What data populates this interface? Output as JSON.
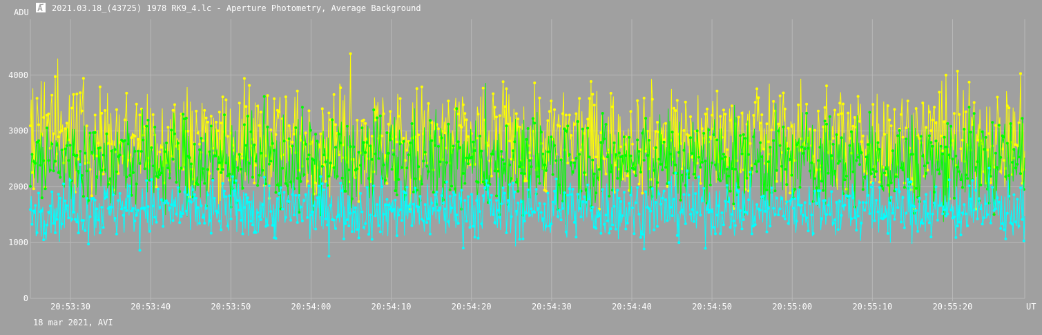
{
  "window": {
    "title": "2021.03.18_(43725) 1978 RK9_4.lc - Aperture Photometry, Average Background",
    "icon": "telescope-app-icon"
  },
  "footer": {
    "date_label": "18 mar 2021, AVI"
  },
  "colors": {
    "background": "#a0a0a0",
    "grid": "#b8b8b8",
    "text": "#ffffff",
    "series": [
      "#ffff00",
      "#00ff00",
      "#00ffff"
    ]
  },
  "chart_data": {
    "type": "line",
    "ylabel": "ADU",
    "xlabel": "UT",
    "ylim": [
      0,
      5000
    ],
    "yticks": [
      0,
      1000,
      2000,
      3000,
      4000
    ],
    "xlim": [
      "20:53:25",
      "20:55:29"
    ],
    "xticks": [
      "20:53:30",
      "20:53:40",
      "20:53:50",
      "20:54:00",
      "20:54:10",
      "20:54:20",
      "20:54:30",
      "20:54:40",
      "20:54:50",
      "20:55:00",
      "20:55:10",
      "20:55:20"
    ],
    "grid": true,
    "markers": true,
    "samples_per_series": 1200,
    "series": [
      {
        "color": "#ffff00",
        "mean": 2850,
        "spread": 480,
        "min": 1600,
        "max": 4600
      },
      {
        "color": "#00ff00",
        "mean": 2450,
        "spread": 430,
        "min": 900,
        "max": 3950
      },
      {
        "color": "#00ffff",
        "mean": 1600,
        "spread": 270,
        "min": 220,
        "max": 2400
      }
    ]
  }
}
